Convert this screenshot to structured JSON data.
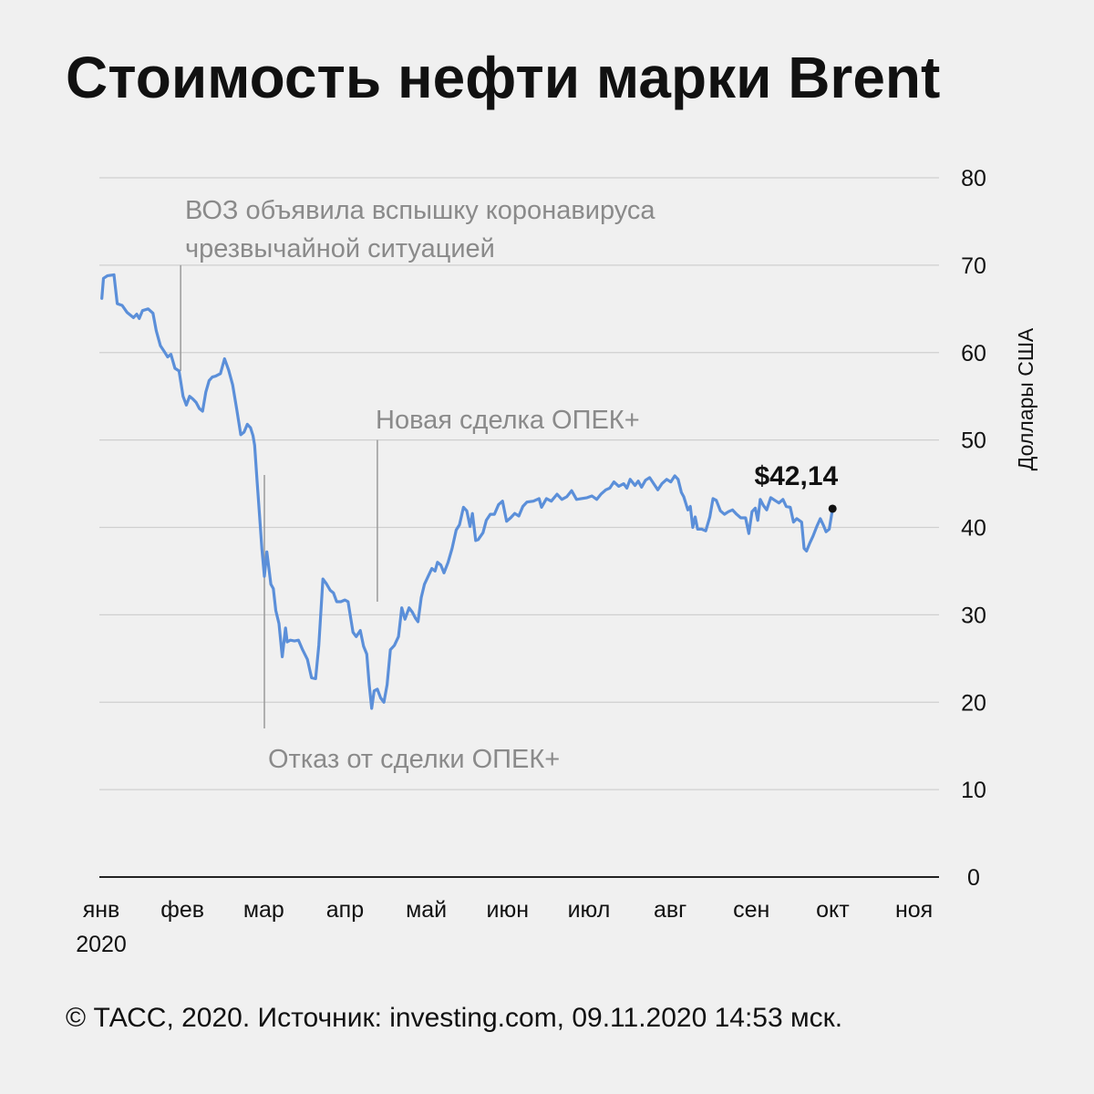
{
  "title": "Стоимость нефти марки Brent",
  "footer": "© ТАСС, 2020. Источник: investing.com, 09.11.2020 14:53 мск.",
  "chart_data": {
    "type": "line",
    "title": "Стоимость нефти марки Brent",
    "ylabel": "Доллары США",
    "xlabel": "",
    "ylim": [
      0,
      80
    ],
    "yticks": [
      0,
      10,
      20,
      30,
      40,
      50,
      60,
      70,
      80
    ],
    "xlim": [
      0,
      10.33
    ],
    "grid": true,
    "line_color": "#5b8fd9",
    "month_ticks": [
      {
        "value": 0,
        "label": "янв"
      },
      {
        "value": 1,
        "label": "фев"
      },
      {
        "value": 2,
        "label": "мар"
      },
      {
        "value": 3,
        "label": "апр"
      },
      {
        "value": 4,
        "label": "май"
      },
      {
        "value": 5,
        "label": "июн"
      },
      {
        "value": 6,
        "label": "июл"
      },
      {
        "value": 7,
        "label": "авг"
      },
      {
        "value": 8,
        "label": "сен"
      },
      {
        "value": 9,
        "label": "окт"
      },
      {
        "value": 10,
        "label": "ноя"
      }
    ],
    "year_label": "2020",
    "series": [
      {
        "values": [
          [
            0.03,
            66.2
          ],
          [
            0.05,
            68.5
          ],
          [
            0.1,
            68.8
          ],
          [
            0.18,
            68.9
          ],
          [
            0.22,
            65.6
          ],
          [
            0.28,
            65.4
          ],
          [
            0.34,
            64.6
          ],
          [
            0.42,
            64.0
          ],
          [
            0.46,
            64.4
          ],
          [
            0.49,
            63.9
          ],
          [
            0.53,
            64.8
          ],
          [
            0.6,
            65.0
          ],
          [
            0.66,
            64.5
          ],
          [
            0.7,
            62.5
          ],
          [
            0.75,
            60.8
          ],
          [
            0.8,
            60.1
          ],
          [
            0.84,
            59.5
          ],
          [
            0.88,
            59.8
          ],
          [
            0.93,
            58.2
          ],
          [
            0.98,
            57.9
          ],
          [
            1.03,
            55.0
          ],
          [
            1.07,
            54.0
          ],
          [
            1.11,
            55.0
          ],
          [
            1.15,
            54.7
          ],
          [
            1.19,
            54.3
          ],
          [
            1.23,
            53.6
          ],
          [
            1.27,
            53.3
          ],
          [
            1.31,
            55.5
          ],
          [
            1.35,
            56.8
          ],
          [
            1.39,
            57.2
          ],
          [
            1.43,
            57.3
          ],
          [
            1.49,
            57.6
          ],
          [
            1.54,
            59.3
          ],
          [
            1.59,
            58.0
          ],
          [
            1.64,
            56.3
          ],
          [
            1.69,
            53.5
          ],
          [
            1.74,
            50.6
          ],
          [
            1.78,
            50.9
          ],
          [
            1.82,
            51.8
          ],
          [
            1.86,
            51.4
          ],
          [
            1.89,
            50.5
          ],
          [
            1.91,
            49.4
          ],
          [
            1.94,
            45.3
          ],
          [
            1.97,
            41.5
          ],
          [
            2.0,
            37.5
          ],
          [
            2.03,
            34.4
          ],
          [
            2.06,
            37.2
          ],
          [
            2.08,
            35.8
          ],
          [
            2.11,
            33.5
          ],
          [
            2.14,
            33.0
          ],
          [
            2.17,
            30.5
          ],
          [
            2.21,
            29.0
          ],
          [
            2.25,
            25.2
          ],
          [
            2.29,
            28.5
          ],
          [
            2.31,
            26.9
          ],
          [
            2.35,
            27.1
          ],
          [
            2.4,
            27.0
          ],
          [
            2.45,
            27.1
          ],
          [
            2.5,
            26.0
          ],
          [
            2.56,
            24.9
          ],
          [
            2.61,
            22.8
          ],
          [
            2.66,
            22.7
          ],
          [
            2.7,
            26.5
          ],
          [
            2.75,
            34.1
          ],
          [
            2.79,
            33.6
          ],
          [
            2.84,
            32.8
          ],
          [
            2.88,
            32.5
          ],
          [
            2.92,
            31.5
          ],
          [
            2.97,
            31.5
          ],
          [
            3.02,
            31.7
          ],
          [
            3.06,
            31.5
          ],
          [
            3.12,
            28.0
          ],
          [
            3.16,
            27.5
          ],
          [
            3.21,
            28.2
          ],
          [
            3.25,
            26.4
          ],
          [
            3.29,
            25.5
          ],
          [
            3.32,
            22.0
          ],
          [
            3.35,
            19.3
          ],
          [
            3.38,
            21.3
          ],
          [
            3.42,
            21.5
          ],
          [
            3.46,
            20.5
          ],
          [
            3.5,
            20.0
          ],
          [
            3.54,
            22.0
          ],
          [
            3.58,
            26.0
          ],
          [
            3.63,
            26.5
          ],
          [
            3.68,
            27.5
          ],
          [
            3.72,
            30.8
          ],
          [
            3.76,
            29.5
          ],
          [
            3.81,
            30.8
          ],
          [
            3.85,
            30.3
          ],
          [
            3.89,
            29.6
          ],
          [
            3.92,
            29.2
          ],
          [
            3.96,
            32.0
          ],
          [
            4.0,
            33.5
          ],
          [
            4.05,
            34.5
          ],
          [
            4.09,
            35.3
          ],
          [
            4.13,
            35.0
          ],
          [
            4.16,
            36.0
          ],
          [
            4.2,
            35.7
          ],
          [
            4.24,
            34.8
          ],
          [
            4.29,
            36.0
          ],
          [
            4.34,
            37.6
          ],
          [
            4.39,
            39.7
          ],
          [
            4.43,
            40.3
          ],
          [
            4.48,
            42.3
          ],
          [
            4.52,
            41.9
          ],
          [
            4.56,
            40.1
          ],
          [
            4.59,
            41.6
          ],
          [
            4.63,
            38.5
          ],
          [
            4.66,
            38.6
          ],
          [
            4.72,
            39.4
          ],
          [
            4.76,
            40.8
          ],
          [
            4.81,
            41.5
          ],
          [
            4.86,
            41.5
          ],
          [
            4.91,
            42.6
          ],
          [
            4.96,
            43.0
          ],
          [
            5.01,
            40.7
          ],
          [
            5.06,
            41.1
          ],
          [
            5.11,
            41.6
          ],
          [
            5.16,
            41.3
          ],
          [
            5.21,
            42.4
          ],
          [
            5.26,
            42.9
          ],
          [
            5.34,
            43.0
          ],
          [
            5.41,
            43.3
          ],
          [
            5.44,
            42.3
          ],
          [
            5.5,
            43.3
          ],
          [
            5.56,
            43.0
          ],
          [
            5.63,
            43.8
          ],
          [
            5.69,
            43.2
          ],
          [
            5.75,
            43.5
          ],
          [
            5.81,
            44.2
          ],
          [
            5.87,
            43.2
          ],
          [
            5.93,
            43.3
          ],
          [
            6.0,
            43.4
          ],
          [
            6.06,
            43.6
          ],
          [
            6.12,
            43.2
          ],
          [
            6.17,
            43.8
          ],
          [
            6.23,
            44.3
          ],
          [
            6.28,
            44.5
          ],
          [
            6.33,
            45.2
          ],
          [
            6.39,
            44.7
          ],
          [
            6.45,
            45.0
          ],
          [
            6.49,
            44.5
          ],
          [
            6.53,
            45.5
          ],
          [
            6.59,
            44.8
          ],
          [
            6.63,
            45.3
          ],
          [
            6.67,
            44.6
          ],
          [
            6.72,
            45.4
          ],
          [
            6.77,
            45.7
          ],
          [
            6.82,
            45.0
          ],
          [
            6.87,
            44.3
          ],
          [
            6.92,
            45.0
          ],
          [
            6.98,
            45.5
          ],
          [
            7.03,
            45.2
          ],
          [
            7.08,
            45.9
          ],
          [
            7.12,
            45.5
          ],
          [
            7.16,
            44.0
          ],
          [
            7.19,
            43.5
          ],
          [
            7.24,
            42.0
          ],
          [
            7.27,
            42.4
          ],
          [
            7.3,
            40.0
          ],
          [
            7.33,
            41.2
          ],
          [
            7.36,
            39.8
          ],
          [
            7.41,
            39.8
          ],
          [
            7.46,
            39.6
          ],
          [
            7.51,
            41.2
          ],
          [
            7.55,
            43.3
          ],
          [
            7.59,
            43.1
          ],
          [
            7.64,
            41.9
          ],
          [
            7.69,
            41.5
          ],
          [
            7.74,
            41.8
          ],
          [
            7.79,
            42.0
          ],
          [
            7.84,
            41.5
          ],
          [
            7.89,
            41.1
          ],
          [
            7.95,
            41.1
          ],
          [
            7.99,
            39.3
          ],
          [
            8.03,
            41.8
          ],
          [
            8.07,
            42.2
          ],
          [
            8.1,
            40.8
          ],
          [
            8.13,
            43.2
          ],
          [
            8.17,
            42.5
          ],
          [
            8.21,
            42.0
          ],
          [
            8.26,
            43.4
          ],
          [
            8.31,
            43.1
          ],
          [
            8.36,
            42.8
          ],
          [
            8.41,
            43.2
          ],
          [
            8.45,
            42.4
          ],
          [
            8.5,
            42.3
          ],
          [
            8.54,
            40.6
          ],
          [
            8.58,
            41.0
          ],
          [
            8.64,
            40.6
          ],
          [
            8.67,
            37.6
          ],
          [
            8.7,
            37.3
          ],
          [
            8.74,
            38.2
          ],
          [
            8.78,
            39.0
          ],
          [
            8.83,
            40.2
          ],
          [
            8.87,
            41.0
          ],
          [
            8.91,
            40.2
          ],
          [
            8.94,
            39.5
          ],
          [
            8.98,
            39.8
          ],
          [
            9.02,
            42.1
          ]
        ]
      }
    ],
    "annotations": [
      {
        "id": "who",
        "lines": [
          "ВОЗ объявила вспышку коронавируса",
          "чрезвычайной ситуацией"
        ],
        "x": 1.0,
        "y_from": 57.9,
        "y_to": 70.0
      },
      {
        "id": "opec_fail",
        "lines": [
          "Отказ от сделки ОПЕК+"
        ],
        "x": 2.03,
        "y_from": 46.0,
        "y_to": 17.0
      },
      {
        "id": "opec_new",
        "lines": [
          "Новая сделка ОПЕК+"
        ],
        "x": 3.42,
        "y_from": 31.5,
        "y_to": 50.0
      }
    ],
    "last_value": {
      "x": 9.02,
      "y": 42.14,
      "label": "$42,14"
    }
  }
}
